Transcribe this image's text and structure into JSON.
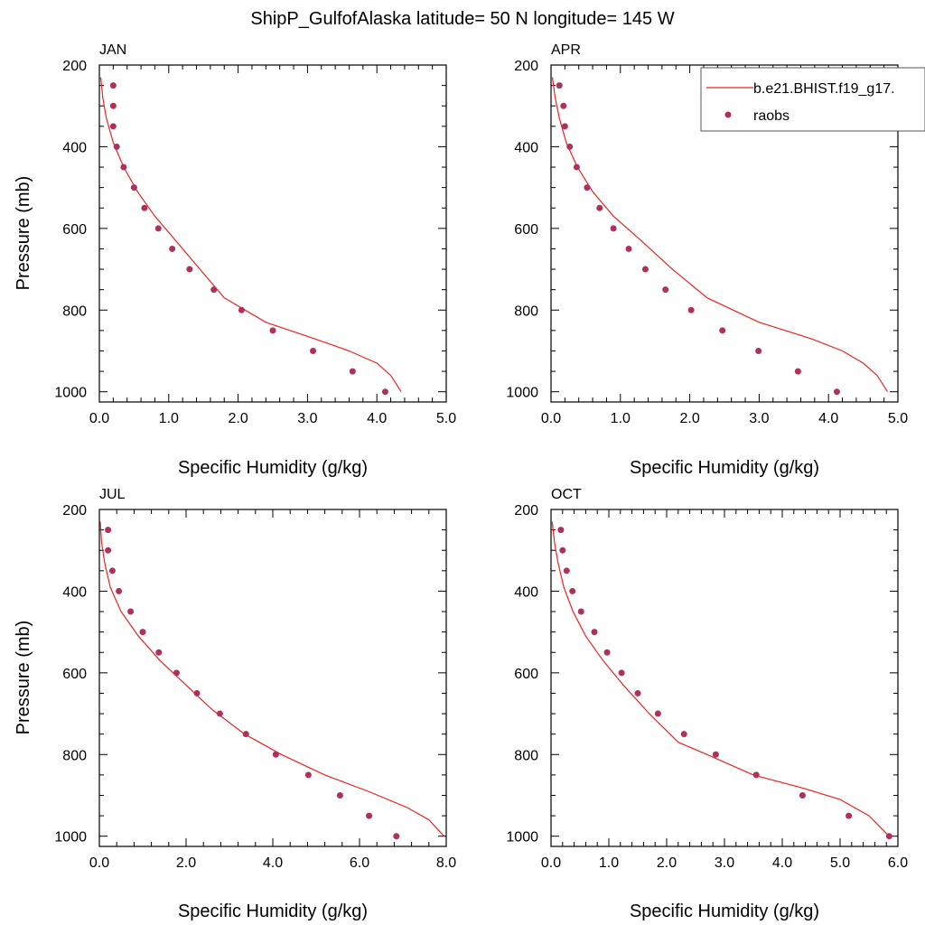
{
  "figure_title": "ShipP_GulfofAlaska  latitude= 50 N longitude= 145 W",
  "colors": {
    "model": "#ee2222",
    "obs": "#b0305a",
    "axis": "#000000"
  },
  "chart_data": [
    {
      "type": "line",
      "panel": "JAN",
      "title": "JAN",
      "xlabel": "Specific Humidity (g/kg)",
      "ylabel": "Pressure (mb)",
      "xlim": [
        0,
        5
      ],
      "ylim": [
        200,
        1025
      ],
      "y_inverted": true,
      "xticks": [
        "0.0",
        "1.0",
        "2.0",
        "3.0",
        "4.0",
        "5.0"
      ],
      "yticks": [
        "200",
        "400",
        "600",
        "800",
        "1000"
      ],
      "series": [
        {
          "name": "b.e21.BHIST.f19_g17.",
          "kind": "line",
          "x": [
            0.02,
            0.05,
            0.1,
            0.2,
            0.35,
            0.55,
            0.8,
            1.1,
            1.45,
            1.8,
            2.4,
            3.1,
            3.6,
            4.0,
            4.2,
            4.35
          ],
          "y": [
            230,
            280,
            330,
            390,
            450,
            510,
            570,
            630,
            700,
            770,
            830,
            870,
            900,
            930,
            960,
            1000
          ]
        },
        {
          "name": "raobs",
          "kind": "scatter",
          "x": [
            0.2,
            0.2,
            0.2,
            0.25,
            0.35,
            0.5,
            0.65,
            0.85,
            1.05,
            1.3,
            1.65,
            2.05,
            2.5,
            3.08,
            3.65,
            4.12
          ],
          "y": [
            250,
            300,
            350,
            400,
            450,
            500,
            550,
            600,
            650,
            700,
            750,
            800,
            850,
            900,
            950,
            1000
          ]
        }
      ]
    },
    {
      "type": "line",
      "panel": "APR",
      "title": "APR",
      "xlabel": "Specific Humidity (g/kg)",
      "ylabel": "",
      "xlim": [
        0,
        5
      ],
      "ylim": [
        200,
        1025
      ],
      "y_inverted": true,
      "xticks": [
        "0.0",
        "1.0",
        "2.0",
        "3.0",
        "4.0",
        "5.0"
      ],
      "yticks": [
        "200",
        "400",
        "600",
        "800",
        "1000"
      ],
      "legend": {
        "placement": "top-right",
        "entries": [
          "b.e21.BHIST.f19_g17.",
          "raobs"
        ]
      },
      "series": [
        {
          "name": "b.e21.BHIST.f19_g17.",
          "kind": "line",
          "x": [
            0.02,
            0.06,
            0.12,
            0.22,
            0.38,
            0.6,
            0.9,
            1.3,
            1.75,
            2.25,
            3.0,
            3.75,
            4.2,
            4.5,
            4.7,
            4.85
          ],
          "y": [
            230,
            280,
            330,
            390,
            450,
            510,
            570,
            630,
            700,
            770,
            830,
            870,
            900,
            930,
            960,
            1000
          ]
        },
        {
          "name": "raobs",
          "kind": "scatter",
          "x": [
            0.12,
            0.18,
            0.2,
            0.27,
            0.37,
            0.52,
            0.7,
            0.9,
            1.12,
            1.36,
            1.65,
            2.02,
            2.47,
            2.99,
            3.56,
            4.12
          ],
          "y": [
            250,
            300,
            350,
            400,
            450,
            500,
            550,
            600,
            650,
            700,
            750,
            800,
            850,
            900,
            950,
            1000
          ]
        }
      ]
    },
    {
      "type": "line",
      "panel": "JUL",
      "title": "JUL",
      "xlabel": "Specific Humidity (g/kg)",
      "ylabel": "Pressure (mb)",
      "xlim": [
        0,
        8
      ],
      "ylim": [
        200,
        1025
      ],
      "y_inverted": true,
      "xticks": [
        "0.0",
        "2.0",
        "4.0",
        "6.0",
        "8.0"
      ],
      "yticks": [
        "200",
        "400",
        "600",
        "800",
        "1000"
      ],
      "series": [
        {
          "name": "b.e21.BHIST.f19_g17.",
          "kind": "line",
          "x": [
            0.02,
            0.05,
            0.12,
            0.25,
            0.5,
            0.9,
            1.4,
            2.0,
            2.6,
            3.35,
            4.2,
            5.2,
            6.2,
            7.1,
            7.6,
            7.95
          ],
          "y": [
            230,
            280,
            330,
            390,
            450,
            510,
            570,
            630,
            690,
            750,
            800,
            850,
            890,
            930,
            960,
            1000
          ]
        },
        {
          "name": "raobs",
          "kind": "scatter",
          "x": [
            0.2,
            0.2,
            0.3,
            0.45,
            0.72,
            1.0,
            1.37,
            1.78,
            2.25,
            2.78,
            3.38,
            4.07,
            4.82,
            5.55,
            6.22,
            6.85
          ],
          "y": [
            250,
            300,
            350,
            400,
            450,
            500,
            550,
            600,
            650,
            700,
            750,
            800,
            850,
            900,
            950,
            1000
          ]
        }
      ]
    },
    {
      "type": "line",
      "panel": "OCT",
      "title": "OCT",
      "xlabel": "Specific Humidity (g/kg)",
      "ylabel": "",
      "xlim": [
        0,
        6
      ],
      "ylim": [
        200,
        1025
      ],
      "y_inverted": true,
      "xticks": [
        "0.0",
        "1.0",
        "2.0",
        "3.0",
        "4.0",
        "5.0",
        "6.0"
      ],
      "yticks": [
        "200",
        "400",
        "600",
        "800",
        "1000"
      ],
      "series": [
        {
          "name": "b.e21.BHIST.f19_g17.",
          "kind": "line",
          "x": [
            0.02,
            0.06,
            0.12,
            0.22,
            0.38,
            0.6,
            0.9,
            1.25,
            1.7,
            2.2,
            2.7,
            3.5,
            4.3,
            5.0,
            5.5,
            5.85
          ],
          "y": [
            230,
            280,
            330,
            390,
            450,
            510,
            570,
            630,
            700,
            770,
            800,
            850,
            880,
            910,
            950,
            1000
          ]
        },
        {
          "name": "raobs",
          "kind": "scatter",
          "x": [
            0.17,
            0.2,
            0.27,
            0.37,
            0.52,
            0.75,
            0.97,
            1.22,
            1.5,
            1.85,
            2.3,
            2.85,
            3.55,
            4.35,
            5.15,
            5.85
          ],
          "y": [
            250,
            300,
            350,
            400,
            450,
            500,
            550,
            600,
            650,
            700,
            750,
            800,
            850,
            900,
            950,
            1000
          ]
        }
      ]
    }
  ]
}
